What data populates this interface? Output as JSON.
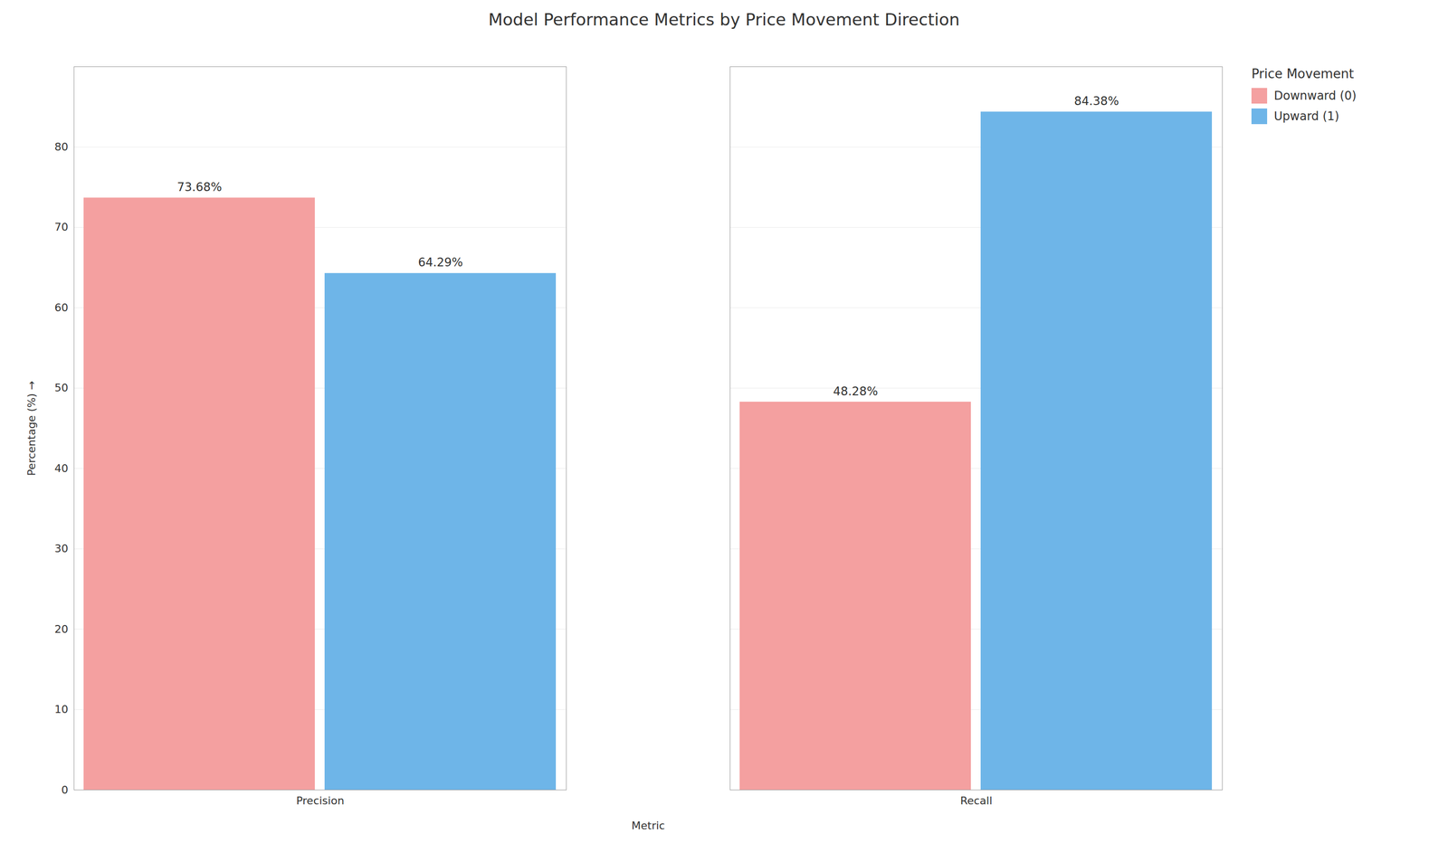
{
  "chart_data": {
    "type": "bar",
    "title": "Model Performance Metrics by Price Movement Direction",
    "xlabel": "Metric",
    "ylabel": "Percentage (%)",
    "legend_title": "Price Movement",
    "categories": [
      "Precision",
      "Recall"
    ],
    "series": [
      {
        "name": "Downward (0)",
        "color": "#F4A0A0",
        "values": [
          73.68,
          48.28
        ],
        "value_labels": [
          "73.68%",
          "48.28%"
        ]
      },
      {
        "name": "Upward (1)",
        "color": "#6EB5E8",
        "values": [
          64.29,
          84.38
        ],
        "value_labels": [
          "64.29%",
          "84.38%"
        ]
      }
    ],
    "ylim": [
      0,
      90
    ],
    "yticks": [
      0,
      10,
      20,
      30,
      40,
      50,
      60,
      70,
      80
    ],
    "grid": true,
    "legend": "right",
    "data_labels": true
  }
}
